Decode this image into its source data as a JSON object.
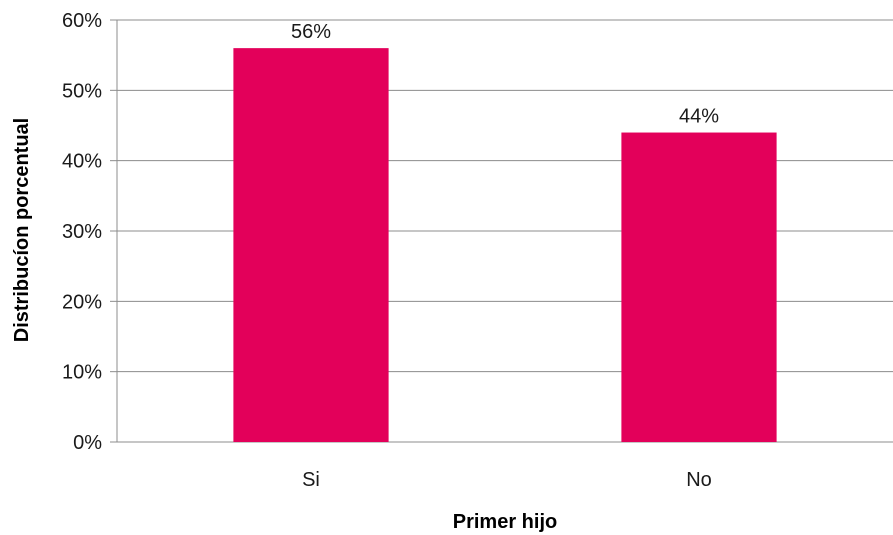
{
  "chart_data": {
    "type": "bar",
    "categories": [
      "Si",
      "No"
    ],
    "values": [
      56,
      44
    ],
    "data_labels": [
      "56%",
      "44%"
    ],
    "title": "",
    "xlabel": "Primer hijo",
    "ylabel": "Distribucíon porcentual",
    "ylim": [
      0,
      60
    ],
    "y_ticks": [
      0,
      10,
      20,
      30,
      40,
      50,
      60
    ],
    "y_tick_labels": [
      "0%",
      "10%",
      "20%",
      "30%",
      "40%",
      "50%",
      "60%"
    ],
    "grid": true,
    "legend": "none",
    "bar_color": "#e3005a"
  }
}
